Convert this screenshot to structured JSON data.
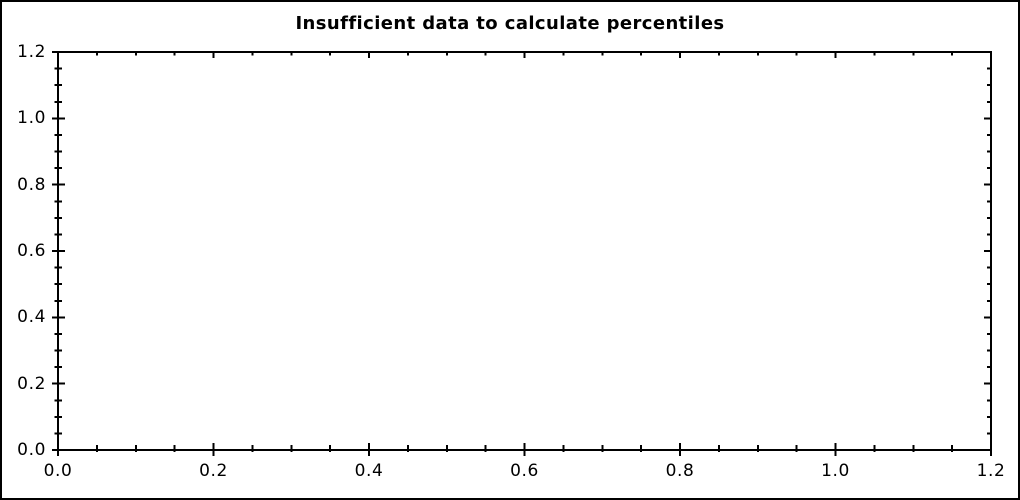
{
  "window": {
    "background_color": "#ffffff",
    "border_color": "#000000",
    "text_color": "#000000"
  },
  "chart_data": {
    "type": "scatter",
    "title": "Insufficient data to calculate percentiles",
    "xlabel": "",
    "ylabel": "",
    "xlim": [
      0.0,
      1.2
    ],
    "ylim": [
      0.0,
      1.2
    ],
    "x_major_tick_values": [
      0.0,
      0.2,
      0.4,
      0.6,
      0.8,
      1.0,
      1.2
    ],
    "y_major_tick_values": [
      0.0,
      0.2,
      0.4,
      0.6,
      0.8,
      1.0,
      1.2
    ],
    "x_tick_labels": [
      "0.0",
      "0.2",
      "0.4",
      "0.6",
      "0.8",
      "1.0",
      "1.2"
    ],
    "y_tick_labels": [
      "0.0",
      "0.2",
      "0.4",
      "0.6",
      "0.8",
      "1.0",
      "1.2"
    ],
    "major_tick_step": 0.2,
    "minor_tick_step": 0.05,
    "grid": false,
    "legend": null,
    "frame": "full-box",
    "series": []
  }
}
